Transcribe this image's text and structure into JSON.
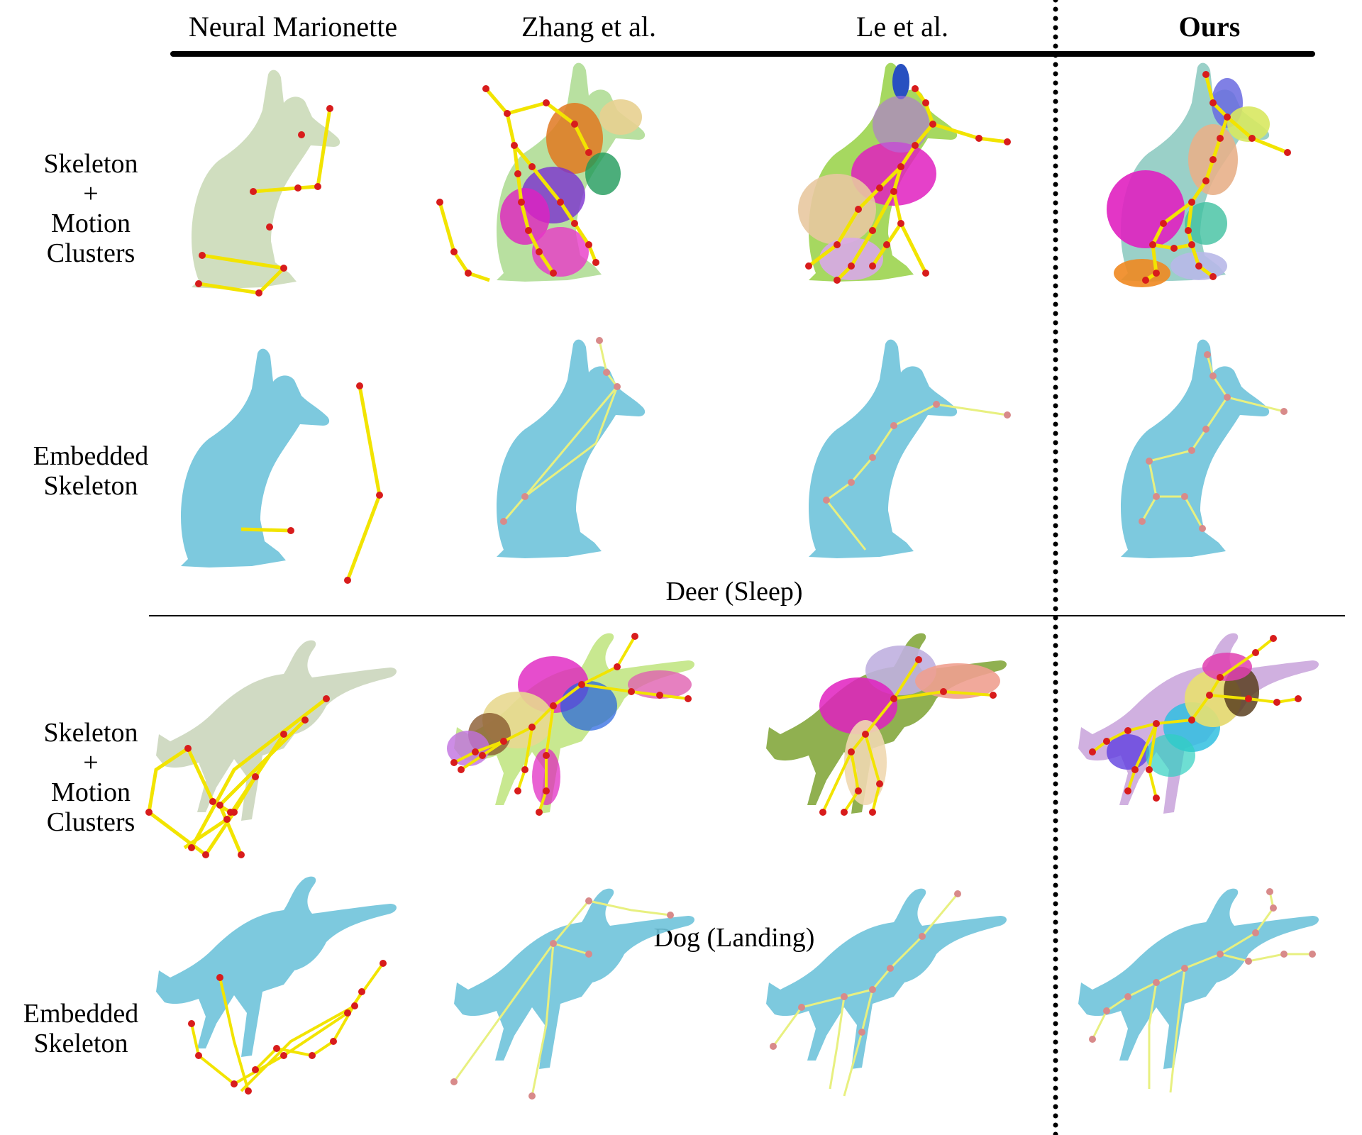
{
  "columns": [
    {
      "label": "Neural Marionette",
      "bold": false
    },
    {
      "label": "Zhang et al.",
      "bold": false
    },
    {
      "label": "Le et al.",
      "bold": false
    },
    {
      "label": "Ours",
      "bold": true
    }
  ],
  "rows": {
    "r1": {
      "label": [
        "Skeleton",
        "+",
        "Motion",
        "Clusters"
      ]
    },
    "r2": {
      "label": [
        "Embedded",
        "Skeleton"
      ]
    },
    "r3": {
      "label": [
        "Skeleton",
        "+",
        "Motion",
        "Clusters"
      ]
    },
    "r4": {
      "label": [
        "Embedded",
        "Skeleton"
      ]
    }
  },
  "groups": [
    {
      "caption": "Deer (Sleep)"
    },
    {
      "caption": "Dog (Landing)"
    }
  ],
  "colors": {
    "mesh_faded": "#c8d8b4",
    "mesh_blue": "#6fc3da",
    "bone": "#f2e400",
    "joint": "#d81c1c",
    "joint_soft": "#d88a8a"
  }
}
